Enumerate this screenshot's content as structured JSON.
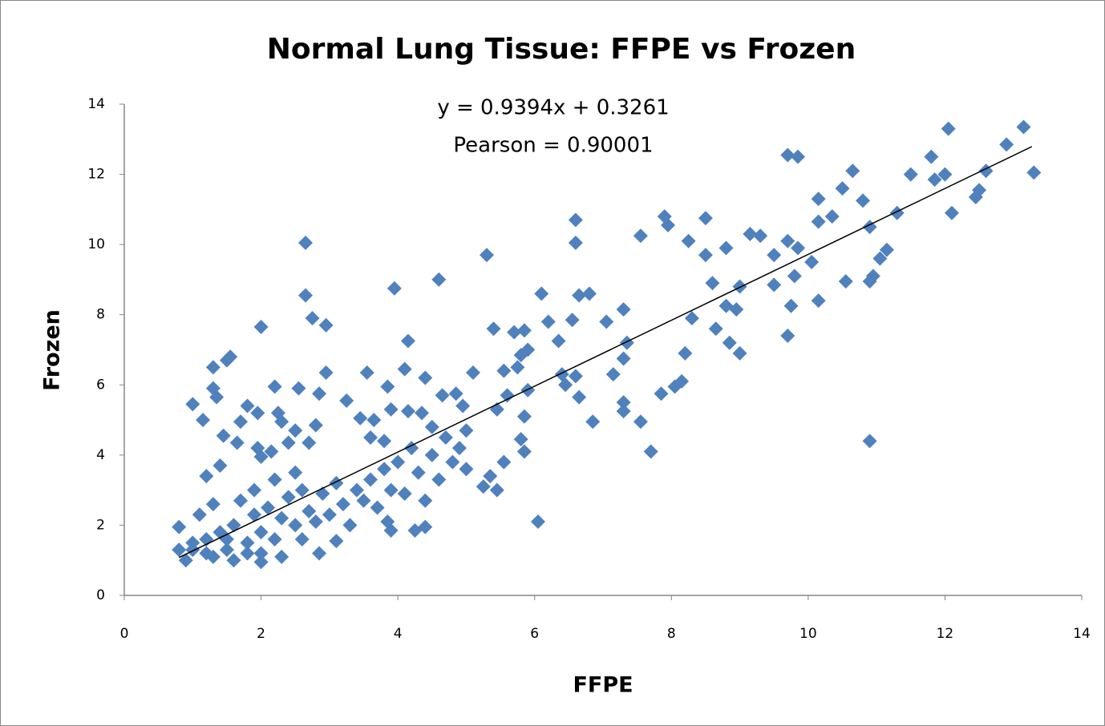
{
  "chart_data": {
    "type": "scatter",
    "title": "Normal Lung Tissue:  FFPE vs Frozen",
    "annotations": [
      "y = 0.9394x + 0.3261",
      "Pearson = 0.90001"
    ],
    "x_label": "FFPE",
    "y_label": "Frozen",
    "color": "#4f81bd",
    "xlim": [
      0,
      14
    ],
    "ylim": [
      0,
      14
    ],
    "xticks": [
      0,
      2,
      4,
      6,
      8,
      10,
      12,
      14
    ],
    "yticks": [
      0,
      2,
      4,
      6,
      8,
      10,
      12,
      14
    ],
    "x": [
      2.65,
      2.65,
      2.75,
      2.95,
      2.0,
      1.3,
      1.5,
      1.55,
      1.0,
      1.15,
      1.3,
      1.35,
      1.8,
      1.95,
      2.2,
      2.55,
      2.25,
      2.3,
      2.95,
      2.85,
      3.25,
      3.55,
      3.85,
      4.1,
      4.15,
      3.95,
      4.6,
      5.3,
      5.4,
      5.7,
      5.85,
      6.1,
      6.6,
      6.6,
      6.65,
      6.8,
      7.05,
      7.3,
      7.55,
      7.9,
      7.95,
      8.25,
      8.5,
      8.5,
      8.8,
      9.15,
      9.3,
      9.7,
      9.85,
      9.7,
      9.85,
      10.15,
      10.15,
      10.35,
      10.5,
      10.65,
      10.8,
      10.9,
      11.5,
      11.8,
      12.0,
      12.05,
      12.1,
      12.5,
      12.6,
      12.9,
      13.15,
      13.3,
      12.45,
      11.85,
      11.3,
      11.15,
      11.05,
      10.95,
      10.9,
      10.9,
      10.55,
      10.15,
      10.05,
      9.75,
      9.7,
      9.8,
      9.5,
      9.5,
      9.0,
      9.0,
      8.85,
      8.95,
      8.8,
      8.65,
      8.6,
      8.3,
      8.2,
      8.15,
      8.05,
      7.85,
      7.7,
      7.55,
      7.3,
      7.3,
      7.3,
      7.35,
      7.15,
      6.85,
      6.65,
      6.6,
      6.45,
      6.55,
      6.35,
      6.4,
      6.2,
      6.05,
      5.9,
      5.8,
      5.85,
      5.85,
      5.75,
      5.8,
      5.9,
      5.55,
      5.6,
      5.55,
      5.45,
      5.25,
      5.35,
      5.45,
      5.1,
      5.0,
      4.95,
      4.85,
      4.65,
      4.4,
      4.5,
      4.4,
      4.25,
      4.35,
      4.15,
      3.9,
      3.9,
      3.85,
      3.8,
      3.6,
      3.45,
      3.65,
      3.1,
      2.85,
      2.8,
      2.7,
      2.5,
      2.4,
      2.15,
      2.0,
      1.95,
      1.7,
      1.65,
      1.45,
      1.4,
      1.2,
      0.8,
      0.9,
      1.0,
      1.3,
      1.6,
      2.0,
      2.3,
      1.0,
      1.2,
      1.4,
      1.5,
      1.6,
      1.8,
      1.9,
      2.0,
      2.1,
      2.2,
      2.3,
      2.4,
      2.5,
      2.6,
      2.7,
      2.8,
      2.9,
      3.0,
      3.1,
      3.2,
      3.3,
      3.4,
      3.5,
      3.6,
      3.7,
      3.8,
      3.9,
      4.0,
      4.1,
      4.2,
      4.3,
      4.4,
      4.5,
      4.6,
      4.7,
      4.8,
      4.9,
      5.0,
      1.1,
      1.3,
      1.7,
      1.9,
      2.2,
      2.5,
      2.0,
      1.5,
      1.2,
      0.8,
      1.8,
      2.6
    ],
    "values": [
      10.05,
      8.55,
      7.9,
      7.7,
      7.65,
      6.5,
      6.7,
      6.8,
      5.45,
      5.0,
      5.9,
      5.65,
      5.4,
      5.2,
      5.95,
      5.9,
      5.2,
      4.95,
      6.35,
      5.75,
      5.55,
      6.35,
      5.95,
      6.45,
      7.25,
      8.75,
      9.0,
      9.7,
      7.6,
      7.5,
      7.55,
      8.6,
      10.7,
      10.05,
      8.55,
      8.6,
      7.8,
      8.15,
      10.25,
      10.8,
      10.55,
      10.1,
      10.75,
      9.7,
      9.9,
      10.3,
      10.25,
      12.55,
      12.5,
      10.1,
      9.9,
      11.3,
      10.65,
      10.8,
      11.6,
      12.1,
      11.25,
      10.5,
      12.0,
      12.5,
      12.0,
      13.3,
      10.9,
      11.55,
      12.1,
      12.85,
      13.35,
      12.05,
      11.35,
      11.85,
      10.9,
      9.85,
      9.6,
      9.1,
      8.95,
      4.4,
      8.95,
      8.4,
      9.5,
      8.25,
      7.4,
      9.1,
      8.85,
      9.7,
      6.9,
      8.8,
      7.2,
      8.15,
      8.25,
      7.6,
      8.9,
      7.9,
      6.9,
      6.1,
      5.95,
      5.75,
      4.1,
      4.95,
      5.25,
      5.5,
      6.75,
      7.2,
      6.3,
      4.95,
      5.65,
      6.25,
      6.0,
      7.85,
      7.25,
      6.3,
      7.8,
      2.1,
      5.85,
      4.45,
      4.1,
      5.1,
      6.5,
      6.85,
      7.0,
      6.4,
      5.7,
      3.8,
      3.0,
      3.1,
      3.4,
      5.3,
      6.35,
      4.7,
      5.4,
      5.75,
      5.7,
      6.2,
      4.8,
      1.95,
      1.85,
      5.2,
      5.25,
      5.3,
      1.85,
      2.1,
      4.4,
      4.5,
      5.05,
      5.0,
      1.55,
      1.2,
      4.85,
      4.35,
      4.7,
      4.35,
      4.1,
      3.95,
      4.2,
      4.95,
      4.35,
      4.55,
      3.7,
      3.4,
      1.95,
      1.0,
      1.3,
      1.1,
      1.0,
      0.95,
      1.1,
      1.5,
      1.6,
      1.8,
      1.3,
      2.0,
      1.5,
      2.3,
      1.8,
      2.5,
      1.6,
      2.2,
      2.8,
      2.0,
      3.0,
      2.4,
      2.1,
      2.9,
      2.3,
      3.2,
      2.6,
      2.0,
      3.0,
      2.7,
      3.3,
      2.5,
      3.6,
      3.0,
      3.8,
      2.9,
      4.2,
      3.5,
      2.7,
      4.0,
      3.3,
      4.5,
      3.8,
      4.2,
      3.6,
      2.3,
      2.6,
      2.7,
      3.0,
      3.3,
      3.5,
      1.2,
      1.6,
      1.2,
      1.3,
      1.2,
      1.6
    ],
    "trendline": {
      "x": [
        0.8,
        13.27
      ],
      "values": [
        1.08,
        12.79
      ]
    }
  }
}
